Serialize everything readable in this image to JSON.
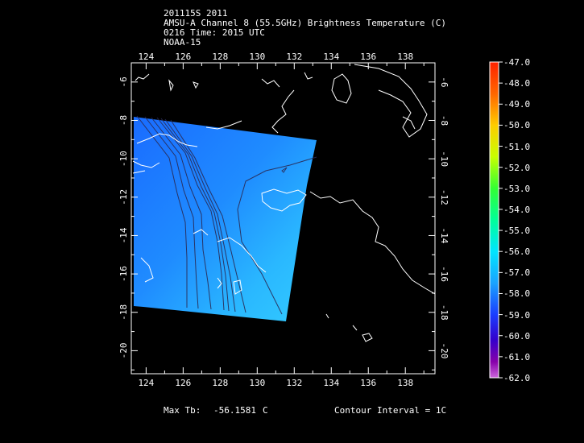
{
  "header": {
    "line1": "201115S 2011",
    "line2": "AMSU-A Channel 8 (55.5GHz) Brightness Temperature (C)",
    "line3": "0216 Time: 2015 UTC",
    "line4": "NOAA-15"
  },
  "axes": {
    "x_ticks": [
      "124",
      "126",
      "128",
      "130",
      "132",
      "134",
      "136",
      "138"
    ],
    "y_ticks": [
      "-6",
      "-8",
      "-10",
      "-12",
      "-14",
      "-16",
      "-18",
      "-20"
    ],
    "lon_range": [
      123.2,
      139.6
    ],
    "lat_range": [
      -21.2,
      -5.0
    ]
  },
  "colorbar": {
    "labels": [
      "-47.0",
      "-48.0",
      "-49.0",
      "-50.0",
      "-51.0",
      "-52.0",
      "-53.0",
      "-54.0",
      "-55.0",
      "-56.0",
      "-57.0",
      "-58.0",
      "-59.0",
      "-60.0",
      "-61.0",
      "-62.0"
    ]
  },
  "footer": {
    "max_tb_label": "Max Tb:",
    "max_tb_value": "-56.1581",
    "max_tb_unit": "C",
    "contour_interval": "Contour Interval = 1C"
  }
}
